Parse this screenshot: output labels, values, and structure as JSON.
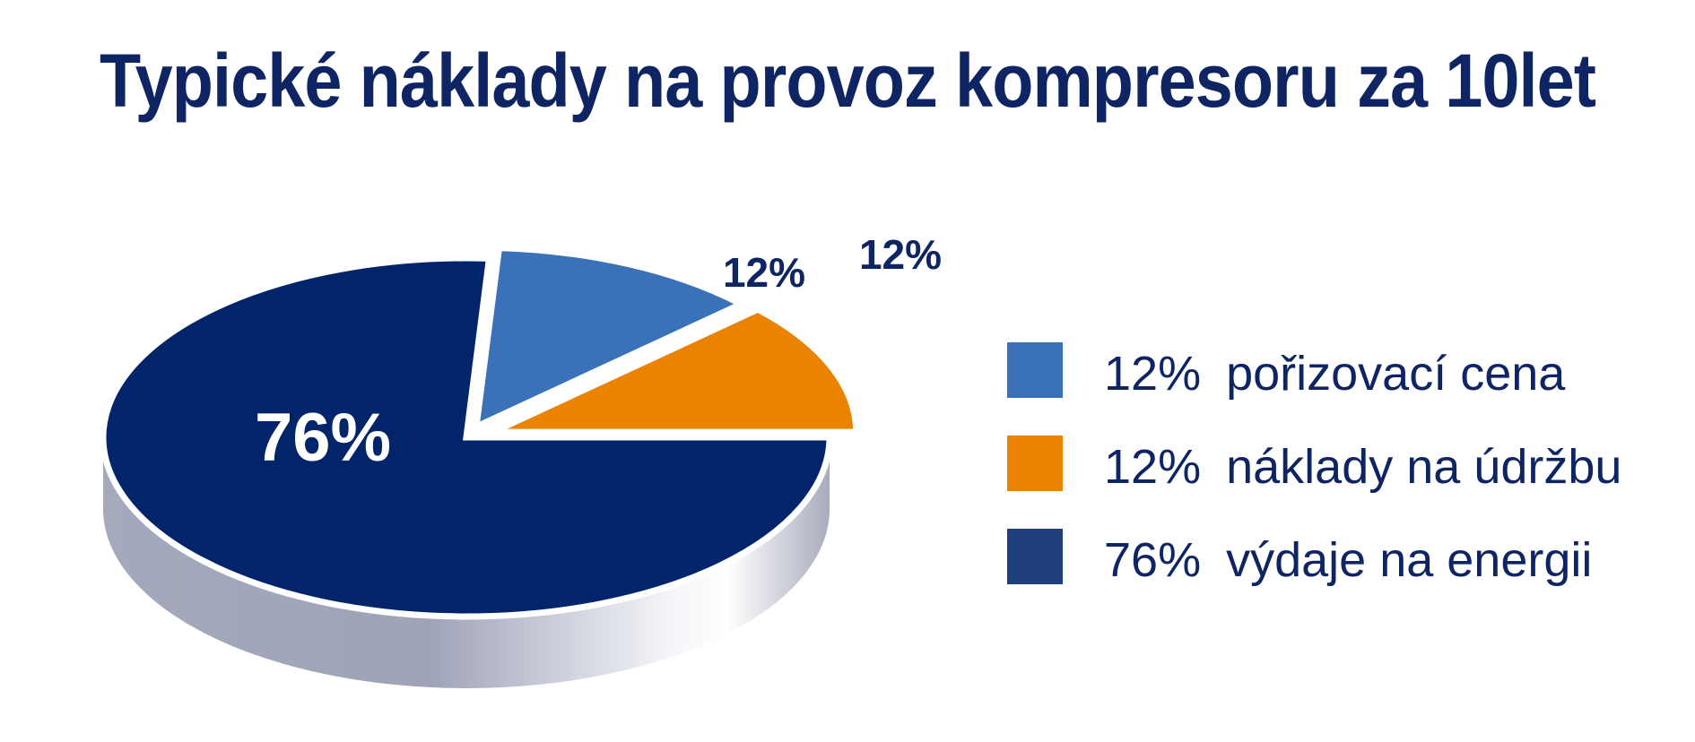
{
  "chart_data": {
    "type": "pie",
    "title": "Typické náklady na provoz kompresoru za 10let",
    "slices": [
      {
        "label": "pořizovací cena",
        "value": 12,
        "value_label": "12%",
        "color": "#3a71b8"
      },
      {
        "label": "náklady na údržbu",
        "value": 12,
        "value_label": "12%",
        "color": "#eb8200"
      },
      {
        "label": "výdaje na energii",
        "value": 76,
        "value_label": "76%",
        "color": "#02246a"
      }
    ],
    "legend_position": "right",
    "legend_swatch_colors": [
      "#3a71b8",
      "#eb8200",
      "#1f3f7d"
    ],
    "style": "3d-pie"
  }
}
